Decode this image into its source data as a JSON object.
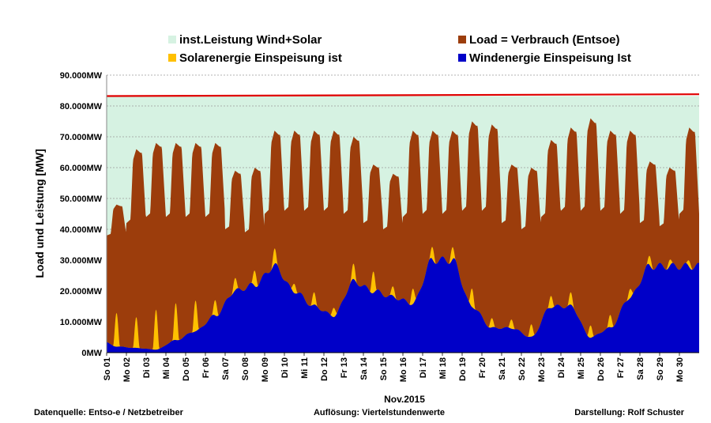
{
  "chart_data": {
    "type": "area",
    "title": "",
    "xlabel": "Nov.2015",
    "ylabel": "Load und Leistung  [MW]",
    "ylim": [
      0,
      90000
    ],
    "y_ticks": [
      "0MW",
      "10.000MW",
      "20.000MW",
      "30.000MW",
      "40.000MW",
      "50.000MW",
      "60.000MW",
      "70.000MW",
      "80.000MW",
      "90.000MW"
    ],
    "y_tick_values": [
      0,
      10000,
      20000,
      30000,
      40000,
      50000,
      60000,
      70000,
      80000,
      90000
    ],
    "x_ticks": [
      "So 01",
      "Mo 02",
      "Di 03",
      "Mi 04",
      "Do 05",
      "Fr 06",
      "Sa 07",
      "So 08",
      "Mo 09",
      "Di 10",
      "Mi 11",
      "Do 12",
      "Fr 13",
      "Sa 14",
      "So 15",
      "Mo 16",
      "Di 17",
      "Mi 18",
      "Do 19",
      "Fr 20",
      "Sa 21",
      "So 22",
      "Mo 23",
      "Di 24",
      "Mi 25",
      "Do 26",
      "Fr 27",
      "Sa 28",
      "So 29",
      "Mo 30"
    ],
    "x_days": [
      1,
      2,
      3,
      4,
      5,
      6,
      7,
      8,
      9,
      10,
      11,
      12,
      13,
      14,
      15,
      16,
      17,
      18,
      19,
      20,
      21,
      22,
      23,
      24,
      25,
      26,
      27,
      28,
      29,
      30
    ],
    "grid": "dashed horizontal",
    "legend_placement": "top",
    "legend": [
      {
        "name": "inst.Leistung Wind+Solar",
        "color": "#d6f2e2"
      },
      {
        "name": "Load =  Verbrauch (Entsoe)",
        "color": "#9c3d0c"
      },
      {
        "name": "Solarenergie Einspeisung ist",
        "color": "#ffc000"
      },
      {
        "name": "Windenergie Einspeisung Ist",
        "color": "#0000c8"
      }
    ],
    "installed_capacity": {
      "start": 83200,
      "end": 83800
    },
    "series": [
      {
        "name": "Load =  Verbrauch (Entsoe)",
        "values": [
          {
            "day": 1,
            "peak": 48000,
            "trough": 38000
          },
          {
            "day": 2,
            "peak": 66000,
            "trough": 42000
          },
          {
            "day": 3,
            "peak": 68000,
            "trough": 44000
          },
          {
            "day": 4,
            "peak": 68000,
            "trough": 44000
          },
          {
            "day": 5,
            "peak": 68000,
            "trough": 44000
          },
          {
            "day": 6,
            "peak": 68000,
            "trough": 44000
          },
          {
            "day": 7,
            "peak": 59000,
            "trough": 40000
          },
          {
            "day": 8,
            "peak": 60000,
            "trough": 39000
          },
          {
            "day": 9,
            "peak": 72000,
            "trough": 45000
          },
          {
            "day": 10,
            "peak": 72000,
            "trough": 46000
          },
          {
            "day": 11,
            "peak": 72000,
            "trough": 46000
          },
          {
            "day": 12,
            "peak": 72000,
            "trough": 46000
          },
          {
            "day": 13,
            "peak": 70000,
            "trough": 45000
          },
          {
            "day": 14,
            "peak": 61000,
            "trough": 42000
          },
          {
            "day": 15,
            "peak": 58000,
            "trough": 40000
          },
          {
            "day": 16,
            "peak": 72000,
            "trough": 44000
          },
          {
            "day": 17,
            "peak": 72000,
            "trough": 45000
          },
          {
            "day": 18,
            "peak": 72000,
            "trough": 45000
          },
          {
            "day": 19,
            "peak": 75000,
            "trough": 46000
          },
          {
            "day": 20,
            "peak": 74000,
            "trough": 46000
          },
          {
            "day": 21,
            "peak": 61000,
            "trough": 42000
          },
          {
            "day": 22,
            "peak": 60000,
            "trough": 40000
          },
          {
            "day": 23,
            "peak": 69000,
            "trough": 44000
          },
          {
            "day": 24,
            "peak": 73000,
            "trough": 46000
          },
          {
            "day": 25,
            "peak": 76000,
            "trough": 46000
          },
          {
            "day": 26,
            "peak": 72000,
            "trough": 46000
          },
          {
            "day": 27,
            "peak": 72000,
            "trough": 45000
          },
          {
            "day": 28,
            "peak": 62000,
            "trough": 42000
          },
          {
            "day": 29,
            "peak": 60000,
            "trough": 41000
          },
          {
            "day": 30,
            "peak": 73000,
            "trough": 45000
          }
        ]
      },
      {
        "name": "Windenergie Einspeisung Ist",
        "values": [
          {
            "day": 1,
            "value": 5000
          },
          {
            "day": 2,
            "value": 2000
          },
          {
            "day": 3,
            "value": 1500
          },
          {
            "day": 4,
            "value": 1000
          },
          {
            "day": 5,
            "value": 4000
          },
          {
            "day": 6,
            "value": 7000
          },
          {
            "day": 7,
            "value": 12000
          },
          {
            "day": 8,
            "value": 20000
          },
          {
            "day": 9,
            "value": 22000
          },
          {
            "day": 10,
            "value": 28000
          },
          {
            "day": 11,
            "value": 20000
          },
          {
            "day": 12,
            "value": 15000
          },
          {
            "day": 13,
            "value": 12000
          },
          {
            "day": 14,
            "value": 23000
          },
          {
            "day": 15,
            "value": 20000
          },
          {
            "day": 16,
            "value": 18000
          },
          {
            "day": 17,
            "value": 16000
          },
          {
            "day": 18,
            "value": 30000
          },
          {
            "day": 19,
            "value": 30000
          },
          {
            "day": 20,
            "value": 15000
          },
          {
            "day": 21,
            "value": 8000
          },
          {
            "day": 22,
            "value": 8000
          },
          {
            "day": 23,
            "value": 5000
          },
          {
            "day": 24,
            "value": 15000
          },
          {
            "day": 25,
            "value": 15000
          },
          {
            "day": 26,
            "value": 5000
          },
          {
            "day": 27,
            "value": 8000
          },
          {
            "day": 28,
            "value": 18000
          },
          {
            "day": 29,
            "value": 28000
          },
          {
            "day": 30,
            "value": 28000
          }
        ]
      },
      {
        "name": "Solarenergie Einspeisung ist",
        "values": [
          {
            "day": 1,
            "value": 11000
          },
          {
            "day": 2,
            "value": 10000
          },
          {
            "day": 3,
            "value": 13000
          },
          {
            "day": 4,
            "value": 12000
          },
          {
            "day": 5,
            "value": 10000
          },
          {
            "day": 6,
            "value": 5000
          },
          {
            "day": 7,
            "value": 4000
          },
          {
            "day": 8,
            "value": 5000
          },
          {
            "day": 9,
            "value": 5000
          },
          {
            "day": 10,
            "value": 3000
          },
          {
            "day": 11,
            "value": 4000
          },
          {
            "day": 12,
            "value": 3000
          },
          {
            "day": 13,
            "value": 5000
          },
          {
            "day": 14,
            "value": 7000
          },
          {
            "day": 15,
            "value": 3000
          },
          {
            "day": 16,
            "value": 5000
          },
          {
            "day": 17,
            "value": 4000
          },
          {
            "day": 18,
            "value": 4000
          },
          {
            "day": 19,
            "value": 6000
          },
          {
            "day": 20,
            "value": 3000
          },
          {
            "day": 21,
            "value": 3000
          },
          {
            "day": 22,
            "value": 4000
          },
          {
            "day": 23,
            "value": 4000
          },
          {
            "day": 24,
            "value": 4000
          },
          {
            "day": 25,
            "value": 4000
          },
          {
            "day": 26,
            "value": 4000
          },
          {
            "day": 27,
            "value": 3000
          },
          {
            "day": 28,
            "value": 3000
          },
          {
            "day": 29,
            "value": 2000
          },
          {
            "day": 30,
            "value": 2000
          }
        ]
      }
    ]
  },
  "footer": {
    "source": "Datenquelle:  Entso-e  / Netzbetreiber",
    "resolution": "Auflösung: Viertelstundenwerte",
    "author": "Darstellung: Rolf Schuster"
  }
}
